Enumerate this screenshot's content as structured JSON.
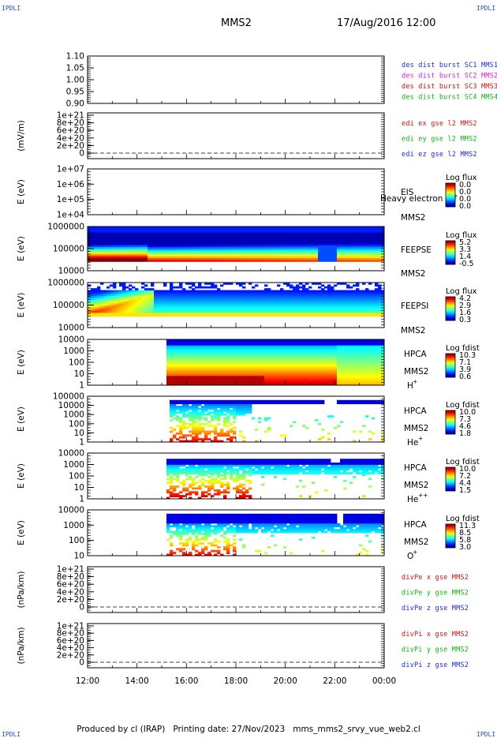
{
  "corner_label": "IPDLI",
  "header": {
    "spacecraft": "MMS2",
    "datetime": "17/Aug/2016 12:00"
  },
  "footer": "Produced by cl (IRAP)   Printing date: 27/Nov/2023   mms_mms2_srvy_vue_web2.cl",
  "chart_data": {
    "type": "heatmap",
    "x_ticks": [
      "12:00",
      "14:00",
      "16:00",
      "18:00",
      "20:00",
      "22:00",
      "00:00"
    ],
    "panels": [
      {
        "id": "des",
        "kind": "line",
        "ylabel": "",
        "yticks": [
          "1.10",
          "1.05",
          "1.00",
          "0.95",
          "0.90"
        ],
        "legend": [
          {
            "text": "des dist burst SC1 MMS1",
            "color": "#1a2ad0"
          },
          {
            "text": "des dist burst SC2 MMS2",
            "color": "#d020d0"
          },
          {
            "text": "des dist burst SC3 MMS3",
            "color": "#d01010"
          },
          {
            "text": "des dist burst SC4 MMS4",
            "color": "#10b010"
          }
        ]
      },
      {
        "id": "edi",
        "kind": "line",
        "ylabel": "(mV/m)",
        "yticks": [
          "1e+21",
          "8e+20",
          "6e+20",
          "4e+20",
          "2e+20",
          "0"
        ],
        "legend": [
          {
            "text": "edi ex gse l2 MMS2",
            "color": "#d01010"
          },
          {
            "text": "edi ey gse l2 MMS2",
            "color": "#10b010"
          },
          {
            "text": "edi ez gse l2 MMS2",
            "color": "#1a2ad0"
          }
        ]
      },
      {
        "id": "eis",
        "kind": "spec",
        "ylabel": "E (eV)",
        "yticks": [
          "1e+07",
          "1e+06",
          "1e+05",
          "1e+04"
        ],
        "names": [
          "EIS",
          "MMS2"
        ],
        "overlay_text": "Heavy electron tof",
        "cbar_title": "Log flux",
        "cbar_ticks": [
          "0.0",
          "0.0",
          "0.0",
          "0.0"
        ]
      },
      {
        "id": "feepse",
        "kind": "spec",
        "ylabel": "E (eV)",
        "yticks": [
          "1000000",
          "100000",
          "10000"
        ],
        "names": [
          "FEEPSE",
          "MMS2"
        ],
        "cbar_title": "Log flux",
        "cbar_ticks": [
          "5.2",
          "3.3",
          "1.4",
          "-0.5"
        ]
      },
      {
        "id": "feepsi",
        "kind": "spec",
        "ylabel": "E (eV)",
        "yticks": [
          "1000000",
          "100000",
          "10000"
        ],
        "names": [
          "FEEPSI",
          "MMS2"
        ],
        "cbar_title": "Log flux",
        "cbar_ticks": [
          "4.2",
          "2.9",
          "1.6",
          "0.3"
        ]
      },
      {
        "id": "hpca_h",
        "kind": "spec",
        "ylabel": "E (eV)",
        "yticks": [
          "10000",
          "1000",
          "100",
          "10",
          "1"
        ],
        "names": [
          "HPCA",
          "MMS2"
        ],
        "species": "H",
        "species_sup": "+",
        "cbar_title": "Log fdist",
        "cbar_ticks": [
          "10.3",
          "7.1",
          "3.9",
          "0.6"
        ]
      },
      {
        "id": "hpca_he",
        "kind": "spec",
        "ylabel": "E (eV)",
        "yticks": [
          "100000",
          "10000",
          "1000",
          "100",
          "10",
          "1"
        ],
        "names": [
          "HPCA",
          "MMS2"
        ],
        "species": "He",
        "species_sup": "+",
        "cbar_title": "Log fdist",
        "cbar_ticks": [
          "10.0",
          "7.3",
          "4.6",
          "1.8"
        ]
      },
      {
        "id": "hpca_he2",
        "kind": "spec",
        "ylabel": "E (eV)",
        "yticks": [
          "10000",
          "1000",
          "100",
          "10",
          "1"
        ],
        "names": [
          "HPCA",
          "MMS2"
        ],
        "species": "He",
        "species_sup": "++",
        "cbar_title": "Log fdist",
        "cbar_ticks": [
          "10.0",
          "7.2",
          "4.4",
          "1.5"
        ]
      },
      {
        "id": "hpca_o",
        "kind": "spec",
        "ylabel": "E (eV)",
        "yticks": [
          "10000",
          "1000",
          "100",
          "10"
        ],
        "names": [
          "HPCA",
          "MMS2"
        ],
        "species": "O",
        "species_sup": "+",
        "cbar_title": "Log fdist",
        "cbar_ticks": [
          "11.3",
          "8.5",
          "5.8",
          "3.0"
        ]
      },
      {
        "id": "divpe",
        "kind": "line",
        "ylabel": "(nPa/km)",
        "yticks": [
          "1e+21",
          "8e+20",
          "6e+20",
          "4e+20",
          "2e+20",
          "0"
        ],
        "legend": [
          {
            "text": "divPe x gse MMS2",
            "color": "#d01010"
          },
          {
            "text": "divPe y gse MMS2",
            "color": "#10b010"
          },
          {
            "text": "divPe z gse MMS2",
            "color": "#1a2ad0"
          }
        ]
      },
      {
        "id": "divpi",
        "kind": "line",
        "ylabel": "(nPa/km)",
        "yticks": [
          "1e+21",
          "8e+20",
          "6e+20",
          "4e+20",
          "2e+20",
          "0"
        ],
        "legend": [
          {
            "text": "divPi x gse MMS2",
            "color": "#d01010"
          },
          {
            "text": "divPi y gse MMS2",
            "color": "#10b010"
          },
          {
            "text": "divPi z gse MMS2",
            "color": "#1a2ad0"
          }
        ]
      }
    ]
  }
}
